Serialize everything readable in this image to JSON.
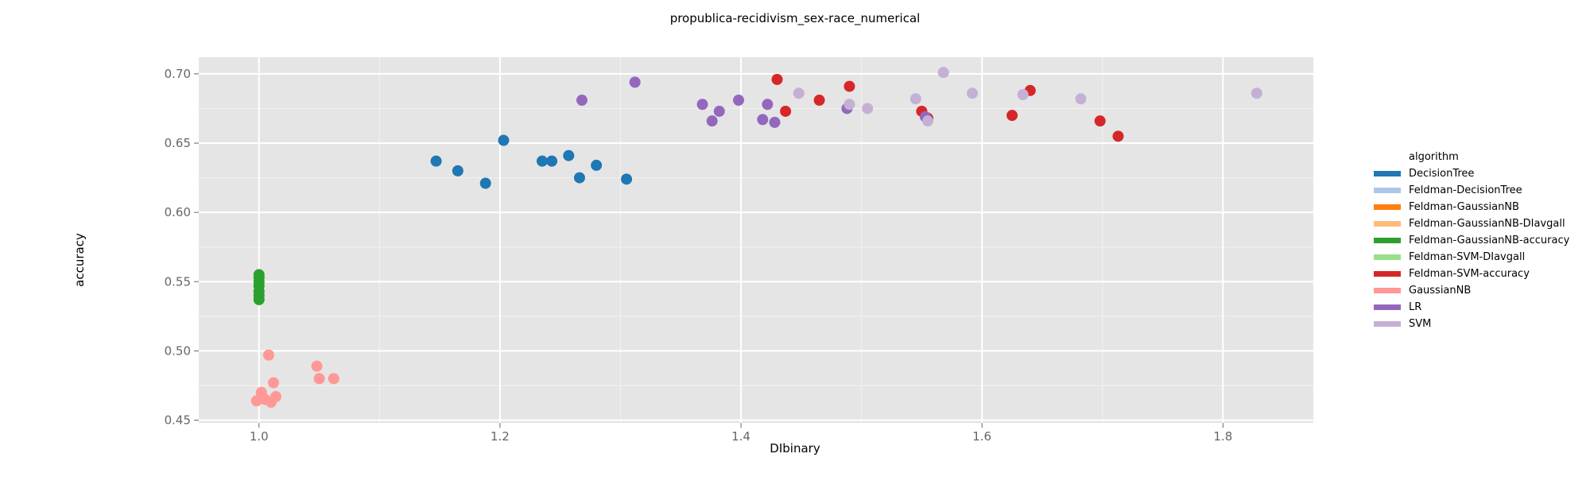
{
  "chart_data": {
    "type": "scatter",
    "title": "propublica-recidivism_sex-race_numerical",
    "xlabel": "DIbinary",
    "ylabel": "accuracy",
    "xlim": [
      0.95,
      1.875
    ],
    "ylim": [
      0.448,
      0.712
    ],
    "x_ticks": [
      1.0,
      1.2,
      1.4,
      1.6,
      1.8
    ],
    "x_tick_labels": [
      "1.0",
      "1.2",
      "1.4",
      "1.6",
      "1.8"
    ],
    "y_ticks": [
      0.45,
      0.5,
      0.55,
      0.6,
      0.65,
      0.7
    ],
    "y_tick_labels": [
      "0.45",
      "0.50",
      "0.55",
      "0.60",
      "0.65",
      "0.70"
    ],
    "grid": true,
    "legend_position": "right",
    "legend_title": "algorithm",
    "series": [
      {
        "name": "DecisionTree",
        "color": "#1f77b4",
        "points": [
          [
            1.147,
            0.637
          ],
          [
            1.165,
            0.63
          ],
          [
            1.188,
            0.621
          ],
          [
            1.203,
            0.652
          ],
          [
            1.235,
            0.637
          ],
          [
            1.243,
            0.637
          ],
          [
            1.257,
            0.641
          ],
          [
            1.266,
            0.625
          ],
          [
            1.28,
            0.634
          ],
          [
            1.305,
            0.624
          ]
        ]
      },
      {
        "name": "Feldman-DecisionTree",
        "color": "#aec7e8",
        "points": []
      },
      {
        "name": "Feldman-GaussianNB",
        "color": "#ff7f0e",
        "points": []
      },
      {
        "name": "Feldman-GaussianNB-DIavgall",
        "color": "#ffbb78",
        "points": []
      },
      {
        "name": "Feldman-GaussianNB-accuracy",
        "color": "#2ca02c",
        "points": [
          [
            1.0,
            0.555
          ],
          [
            1.0,
            0.553
          ],
          [
            1.0,
            0.55
          ],
          [
            1.0,
            0.547
          ],
          [
            1.0,
            0.543
          ],
          [
            1.0,
            0.54
          ],
          [
            1.0,
            0.537
          ]
        ]
      },
      {
        "name": "Feldman-SVM-DIavgall",
        "color": "#98df8a",
        "points": []
      },
      {
        "name": "Feldman-SVM-accuracy",
        "color": "#d62728",
        "points": [
          [
            1.43,
            0.696
          ],
          [
            1.437,
            0.673
          ],
          [
            1.465,
            0.681
          ],
          [
            1.49,
            0.691
          ],
          [
            1.55,
            0.673
          ],
          [
            1.555,
            0.668
          ],
          [
            1.625,
            0.67
          ],
          [
            1.64,
            0.688
          ],
          [
            1.698,
            0.666
          ],
          [
            1.713,
            0.655
          ]
        ]
      },
      {
        "name": "GaussianNB",
        "color": "#ff9896",
        "points": [
          [
            0.998,
            0.464
          ],
          [
            1.002,
            0.47
          ],
          [
            1.005,
            0.465
          ],
          [
            1.008,
            0.497
          ],
          [
            1.01,
            0.463
          ],
          [
            1.012,
            0.477
          ],
          [
            1.014,
            0.467
          ],
          [
            1.048,
            0.489
          ],
          [
            1.05,
            0.48
          ],
          [
            1.062,
            0.48
          ]
        ]
      },
      {
        "name": "LR",
        "color": "#9467bd",
        "points": [
          [
            1.268,
            0.681
          ],
          [
            1.312,
            0.694
          ],
          [
            1.368,
            0.678
          ],
          [
            1.376,
            0.666
          ],
          [
            1.382,
            0.673
          ],
          [
            1.398,
            0.681
          ],
          [
            1.418,
            0.667
          ],
          [
            1.422,
            0.678
          ],
          [
            1.428,
            0.665
          ],
          [
            1.488,
            0.675
          ],
          [
            1.553,
            0.669
          ]
        ]
      },
      {
        "name": "SVM",
        "color": "#c5b0d5",
        "points": [
          [
            1.448,
            0.686
          ],
          [
            1.49,
            0.678
          ],
          [
            1.505,
            0.675
          ],
          [
            1.545,
            0.682
          ],
          [
            1.555,
            0.666
          ],
          [
            1.568,
            0.701
          ],
          [
            1.592,
            0.686
          ],
          [
            1.634,
            0.685
          ],
          [
            1.682,
            0.682
          ],
          [
            1.828,
            0.686
          ]
        ]
      }
    ]
  }
}
